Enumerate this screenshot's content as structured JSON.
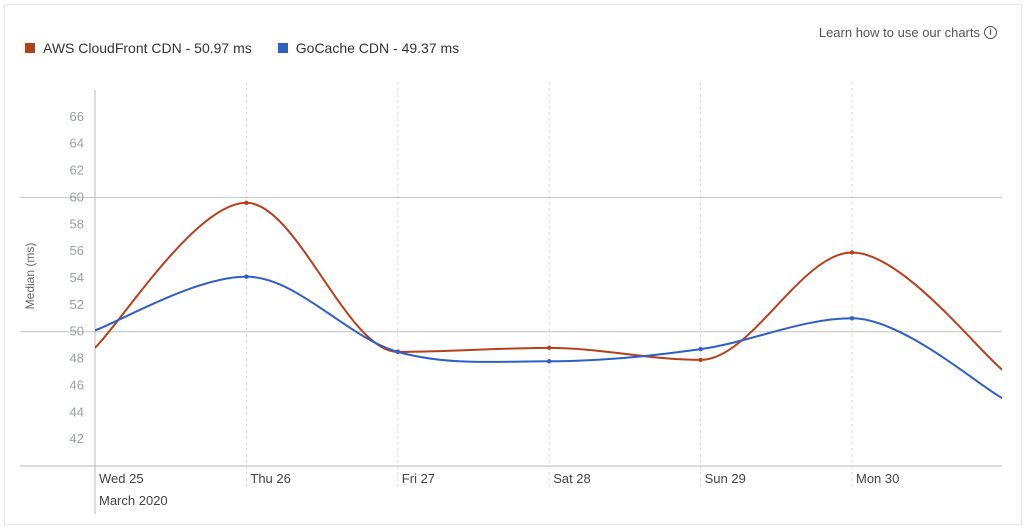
{
  "help_link": {
    "label": "Learn how to use our charts",
    "icon": "info-icon"
  },
  "colors": {
    "aws": "#b5401a",
    "gocache": "#2e5fc4"
  },
  "chart_data": {
    "type": "line",
    "ylabel": "Median (ms)",
    "ylim": [
      40,
      68
    ],
    "yticks": [
      42,
      44,
      46,
      48,
      50,
      52,
      54,
      56,
      58,
      60,
      62,
      64,
      66
    ],
    "reference_lines": [
      50,
      60
    ],
    "x_labels": [
      "Wed 25",
      "Thu 26",
      "Fri 27",
      "Sat 28",
      "Sun 29",
      "Mon 30"
    ],
    "x_sublabel": "March 2020",
    "series": [
      {
        "name": "AWS CloudFront CDN - 50.97 ms",
        "color": "#b5401a",
        "points": [
          {
            "x": 0,
            "y": 48.8
          },
          {
            "x": 1,
            "y": 59.6
          },
          {
            "x": 2,
            "y": 48.5
          },
          {
            "x": 3,
            "y": 48.8
          },
          {
            "x": 4,
            "y": 47.9
          },
          {
            "x": 5,
            "y": 55.9
          },
          {
            "x": 6,
            "y": 47.1
          }
        ]
      },
      {
        "name": "GoCache CDN - 49.37 ms",
        "color": "#2e5fc4",
        "points": [
          {
            "x": 0,
            "y": 50.1
          },
          {
            "x": 1,
            "y": 54.1
          },
          {
            "x": 2,
            "y": 48.5
          },
          {
            "x": 3,
            "y": 47.8
          },
          {
            "x": 4,
            "y": 48.7
          },
          {
            "x": 5,
            "y": 51.0
          },
          {
            "x": 6,
            "y": 45.0
          }
        ]
      }
    ]
  }
}
